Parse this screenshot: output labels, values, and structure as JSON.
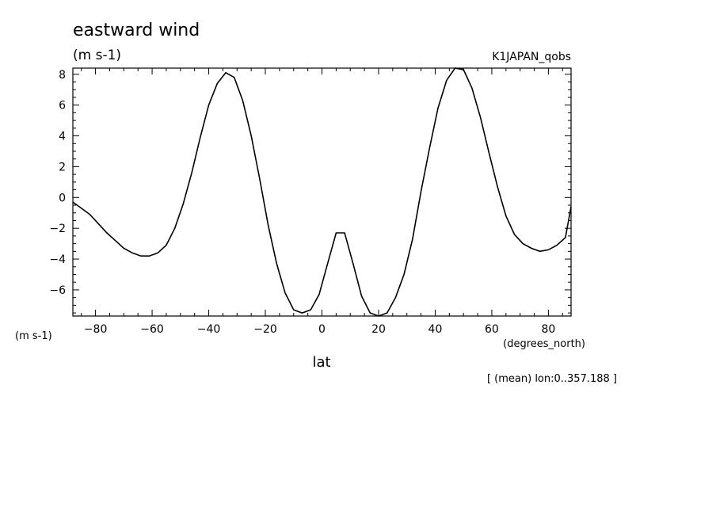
{
  "chart_data": {
    "type": "line",
    "title": "eastward wind",
    "subtitle": "(m s-1)",
    "dataset_label": "K1JAPAN_qobs",
    "ylabel": "(m s-1)",
    "xunits": "(degrees_north)",
    "xlabel": "lat",
    "footnote": "[ (mean) lon:0..357.188 ]",
    "xlim": [
      -88,
      88
    ],
    "ylim": [
      -7.7,
      8.4
    ],
    "xticks": [
      -80,
      -60,
      -40,
      -20,
      0,
      20,
      40,
      60,
      80
    ],
    "yticks": [
      -6,
      -4,
      -2,
      0,
      2,
      4,
      6,
      8
    ],
    "grid": false,
    "series": [
      {
        "x": [
          -88,
          -85,
          -82,
          -79,
          -76,
          -73,
          -70,
          -67,
          -64,
          -61,
          -58,
          -55,
          -52,
          -49,
          -46,
          -43,
          -40,
          -37,
          -34,
          -31,
          -28,
          -25,
          -22,
          -19,
          -16,
          -13,
          -10,
          -7,
          -4,
          -1,
          2,
          5,
          8,
          11,
          14,
          17,
          20,
          23,
          26,
          29,
          32,
          35,
          38,
          41,
          44,
          47,
          50,
          53,
          56,
          59,
          62,
          65,
          68,
          71,
          74,
          77,
          80,
          83,
          86,
          88
        ],
        "y": [
          -0.3,
          -0.7,
          -1.1,
          -1.7,
          -2.3,
          -2.8,
          -3.3,
          -3.6,
          -3.8,
          -3.8,
          -3.6,
          -3.1,
          -2.0,
          -0.4,
          1.6,
          3.9,
          6.0,
          7.4,
          8.1,
          7.8,
          6.3,
          4.0,
          1.2,
          -1.8,
          -4.3,
          -6.2,
          -7.3,
          -7.5,
          -7.3,
          -6.3,
          -4.3,
          -2.3,
          -2.3,
          -4.3,
          -6.4,
          -7.5,
          -7.7,
          -7.5,
          -6.5,
          -5.0,
          -2.7,
          0.4,
          3.2,
          5.8,
          7.6,
          8.4,
          8.3,
          7.1,
          5.2,
          2.9,
          0.7,
          -1.2,
          -2.4,
          -3.0,
          -3.3,
          -3.5,
          -3.4,
          -3.1,
          -2.6,
          -0.6
        ]
      }
    ]
  }
}
